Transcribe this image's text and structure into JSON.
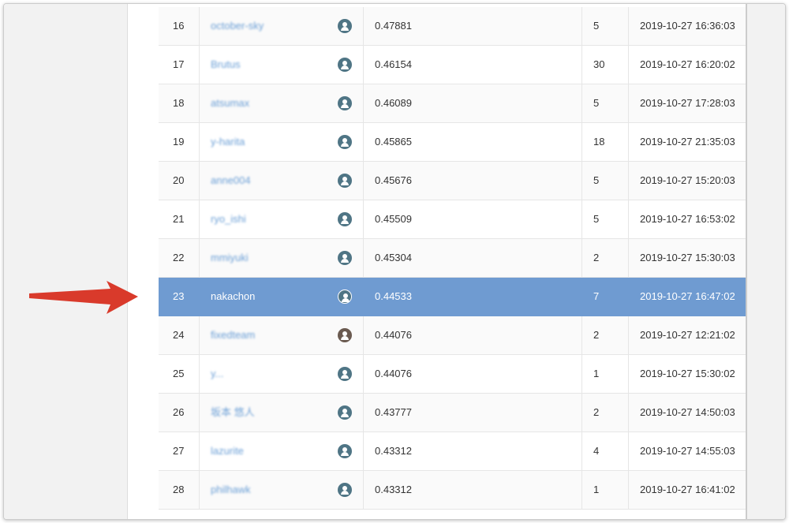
{
  "table": {
    "rows": [
      [
        "16",
        "october-sky",
        "0.47881",
        "5",
        "2019-10-27 16:36:03"
      ],
      [
        "17",
        "Brutus",
        "0.46154",
        "30",
        "2019-10-27 16:20:02"
      ],
      [
        "18",
        "atsumax",
        "0.46089",
        "5",
        "2019-10-27 17:28:03"
      ],
      [
        "19",
        "y-harita",
        "0.45865",
        "18",
        "2019-10-27 21:35:03"
      ],
      [
        "20",
        "anne004",
        "0.45676",
        "5",
        "2019-10-27 15:20:03"
      ],
      [
        "21",
        "ryo_ishi",
        "0.45509",
        "5",
        "2019-10-27 16:53:02"
      ],
      [
        "22",
        "mmiyuki",
        "0.45304",
        "2",
        "2019-10-27 15:30:03"
      ],
      [
        "23",
        "nakachon",
        "0.44533",
        "7",
        "2019-10-27 16:47:02"
      ],
      [
        "24",
        "fixedteam",
        "0.44076",
        "2",
        "2019-10-27 12:21:02"
      ],
      [
        "25",
        "y...",
        "0.44076",
        "1",
        "2019-10-27 15:30:02"
      ],
      [
        "26",
        "坂本 悠人",
        "0.43777",
        "2",
        "2019-10-27 14:50:03"
      ],
      [
        "27",
        "lazurite",
        "0.43312",
        "4",
        "2019-10-27 14:55:03"
      ],
      [
        "28",
        "philhawk",
        "0.43312",
        "1",
        "2019-10-27 16:41:02"
      ]
    ],
    "highlight_row": 7
  }
}
